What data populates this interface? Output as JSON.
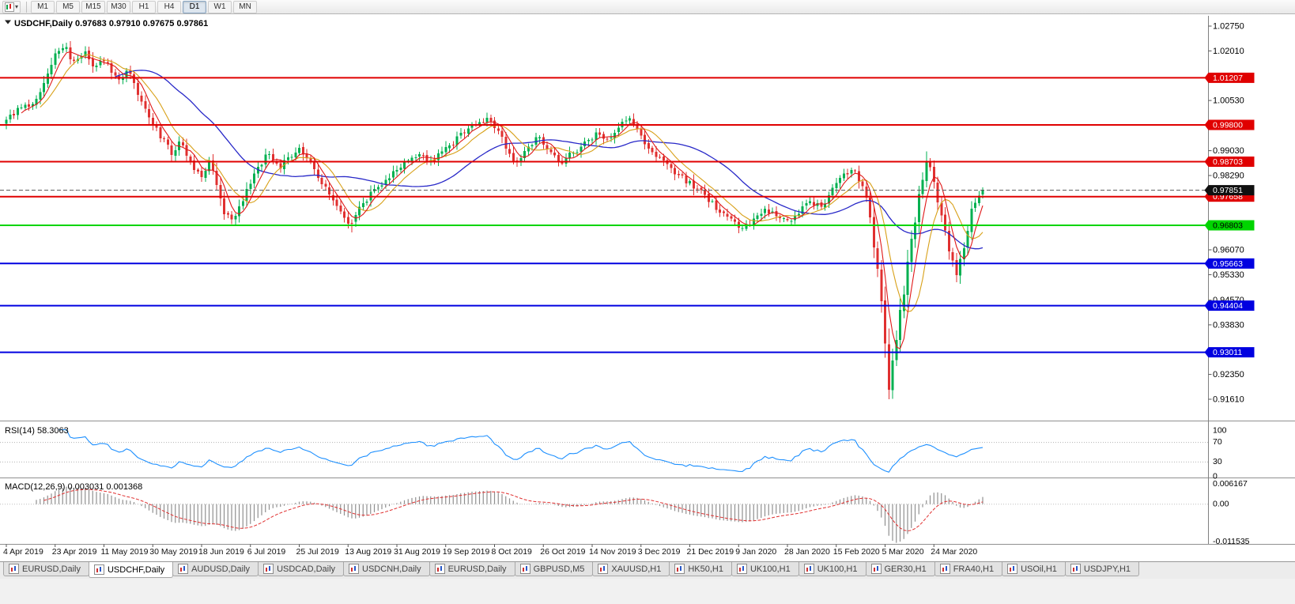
{
  "toolbar": {
    "chart_type_icon": "candlestick-chart",
    "timeframes": [
      {
        "label": "M1",
        "active": false
      },
      {
        "label": "M5",
        "active": false
      },
      {
        "label": "M15",
        "active": false
      },
      {
        "label": "M30",
        "active": false
      },
      {
        "label": "H1",
        "active": false
      },
      {
        "label": "H4",
        "active": false
      },
      {
        "label": "D1",
        "active": true
      },
      {
        "label": "W1",
        "active": false
      },
      {
        "label": "MN",
        "active": false
      }
    ]
  },
  "chart": {
    "title_line": "USDCHF,Daily  0.97683 0.97910 0.97675 0.97861",
    "symbol": "USDCHF",
    "period": "Daily",
    "rsi_title": "RSI(14) 58.3063",
    "macd_title": "MACD(12,26,9) 0.003031 0.001368"
  },
  "price_axis": {
    "ticks": [
      {
        "label": "1.02750",
        "value": 1.0275
      },
      {
        "label": "1.02010",
        "value": 1.0201
      },
      {
        "label": "1.00530",
        "value": 1.0053
      },
      {
        "label": "0.99030",
        "value": 0.9903
      },
      {
        "label": "0.98290",
        "value": 0.9829
      },
      {
        "label": "0.96070",
        "value": 0.9607
      },
      {
        "label": "0.95330",
        "value": 0.9533
      },
      {
        "label": "0.94570",
        "value": 0.9457
      },
      {
        "label": "0.93830",
        "value": 0.9383
      },
      {
        "label": "0.92350",
        "value": 0.9235
      },
      {
        "label": "0.91610",
        "value": 0.9161
      }
    ],
    "levels": [
      {
        "label": "1.01207",
        "value": 1.01207,
        "color": "#E00000",
        "text_color": "#FFFFFF",
        "width": 2,
        "kind": "resistance-line"
      },
      {
        "label": "0.99800",
        "value": 0.998,
        "color": "#E00000",
        "text_color": "#FFFFFF",
        "width": 2,
        "kind": "resistance-line"
      },
      {
        "label": "0.98703",
        "value": 0.98703,
        "color": "#E00000",
        "text_color": "#FFFFFF",
        "width": 2,
        "kind": "resistance-line"
      },
      {
        "label": "0.97658",
        "value": 0.97658,
        "color": "#E00000",
        "text_color": "#FFFFFF",
        "width": 2,
        "kind": "resistance-line"
      },
      {
        "label": "0.96803",
        "value": 0.96803,
        "color": "#00D400",
        "text_color": "#000000",
        "width": 2,
        "kind": "pivot-line"
      },
      {
        "label": "0.95663",
        "value": 0.95663,
        "color": "#0000E0",
        "text_color": "#FFFFFF",
        "width": 2,
        "kind": "support-line"
      },
      {
        "label": "0.94404",
        "value": 0.94404,
        "color": "#0000E0",
        "text_color": "#FFFFFF",
        "width": 2,
        "kind": "support-line"
      },
      {
        "label": "0.93011",
        "value": 0.93011,
        "color": "#0000E0",
        "text_color": "#FFFFFF",
        "width": 2,
        "kind": "support-line"
      }
    ],
    "bid": {
      "label": "0.97851",
      "value": 0.97851,
      "color": "#101010",
      "text_color": "#FFFFFF"
    }
  },
  "rsi_axis": {
    "labels": [
      {
        "label": "100",
        "value": 100
      },
      {
        "label": "70",
        "value": 70
      },
      {
        "label": "30",
        "value": 30
      },
      {
        "label": "0",
        "value": 0
      }
    ],
    "level_lines": [
      70,
      30
    ]
  },
  "macd_axis": {
    "labels": [
      {
        "label": "0.006167",
        "value": 0.006167
      },
      {
        "label": "0.00",
        "value": 0
      },
      {
        "label": "-0.011535",
        "value": -0.011535
      }
    ]
  },
  "dates": [
    {
      "label": "4 Apr 2019",
      "bar": 0
    },
    {
      "label": "23 Apr 2019",
      "bar": 13
    },
    {
      "label": "11 May 2019",
      "bar": 26
    },
    {
      "label": "30 May 2019",
      "bar": 39
    },
    {
      "label": "18 Jun 2019",
      "bar": 52
    },
    {
      "label": "6 Jul 2019",
      "bar": 65
    },
    {
      "label": "25 Jul 2019",
      "bar": 78
    },
    {
      "label": "13 Aug 2019",
      "bar": 91
    },
    {
      "label": "31 Aug 2019",
      "bar": 104
    },
    {
      "label": "19 Sep 2019",
      "bar": 117
    },
    {
      "label": "8 Oct 2019",
      "bar": 130
    },
    {
      "label": "26 Oct 2019",
      "bar": 143
    },
    {
      "label": "14 Nov 2019",
      "bar": 156
    },
    {
      "label": "3 Dec 2019",
      "bar": 169
    },
    {
      "label": "21 Dec 2019",
      "bar": 182
    },
    {
      "label": "9 Jan 2020",
      "bar": 195
    },
    {
      "label": "28 Jan 2020",
      "bar": 208
    },
    {
      "label": "15 Feb 2020",
      "bar": 221
    },
    {
      "label": "5 Mar 2020",
      "bar": 234
    },
    {
      "label": "24 Mar 2020",
      "bar": 247
    }
  ],
  "chart_data": {
    "type": "candlestick",
    "symbol": "USDCHF",
    "period": "Daily",
    "bars": 261,
    "ohlc_current": {
      "open": 0.97683,
      "high": 0.9791,
      "low": 0.97675,
      "close": 0.97861
    },
    "price_range_visible": [
      0.9161,
      1.0275
    ],
    "style": {
      "up_color": "#00B050",
      "down_color": "#E03030"
    },
    "close_keypoints": [
      [
        0,
        1.0
      ],
      [
        3,
        1.0022
      ],
      [
        6,
        1.004
      ],
      [
        9,
        1.0072
      ],
      [
        11,
        1.0118
      ],
      [
        13,
        1.0185
      ],
      [
        15,
        1.0208
      ],
      [
        16,
        1.0218
      ],
      [
        18,
        1.0165
      ],
      [
        21,
        1.0198
      ],
      [
        23,
        1.015
      ],
      [
        26,
        1.0172
      ],
      [
        28,
        1.0138
      ],
      [
        30,
        1.0118
      ],
      [
        32,
        1.0145
      ],
      [
        34,
        1.0098
      ],
      [
        36,
        1.0042
      ],
      [
        39,
        0.9986
      ],
      [
        42,
        0.993
      ],
      [
        44,
        0.9892
      ],
      [
        46,
        0.9928
      ],
      [
        49,
        0.9862
      ],
      [
        52,
        0.983
      ],
      [
        54,
        0.9866
      ],
      [
        56,
        0.9792
      ],
      [
        58,
        0.9726
      ],
      [
        60,
        0.9698
      ],
      [
        62,
        0.9742
      ],
      [
        65,
        0.9802
      ],
      [
        68,
        0.9868
      ],
      [
        70,
        0.9895
      ],
      [
        73,
        0.9856
      ],
      [
        76,
        0.9886
      ],
      [
        78,
        0.9908
      ],
      [
        81,
        0.9864
      ],
      [
        84,
        0.9806
      ],
      [
        87,
        0.9746
      ],
      [
        90,
        0.9706
      ],
      [
        92,
        0.9682
      ],
      [
        95,
        0.9744
      ],
      [
        98,
        0.9786
      ],
      [
        101,
        0.9816
      ],
      [
        104,
        0.9846
      ],
      [
        107,
        0.9876
      ],
      [
        110,
        0.9898
      ],
      [
        113,
        0.987
      ],
      [
        116,
        0.9898
      ],
      [
        119,
        0.9928
      ],
      [
        122,
        0.9958
      ],
      [
        125,
        0.9984
      ],
      [
        128,
        1.0
      ],
      [
        131,
        0.9952
      ],
      [
        134,
        0.9898
      ],
      [
        136,
        0.9868
      ],
      [
        139,
        0.9914
      ],
      [
        142,
        0.9944
      ],
      [
        145,
        0.9902
      ],
      [
        148,
        0.9868
      ],
      [
        151,
        0.9898
      ],
      [
        154,
        0.9928
      ],
      [
        157,
        0.9954
      ],
      [
        160,
        0.9934
      ],
      [
        163,
        0.9974
      ],
      [
        166,
        0.9996
      ],
      [
        169,
        0.9946
      ],
      [
        172,
        0.9898
      ],
      [
        175,
        0.9868
      ],
      [
        178,
        0.984
      ],
      [
        181,
        0.9812
      ],
      [
        184,
        0.979
      ],
      [
        187,
        0.9758
      ],
      [
        190,
        0.9722
      ],
      [
        193,
        0.9692
      ],
      [
        196,
        0.9668
      ],
      [
        199,
        0.97
      ],
      [
        202,
        0.973
      ],
      [
        205,
        0.9708
      ],
      [
        208,
        0.969
      ],
      [
        211,
        0.9722
      ],
      [
        214,
        0.9752
      ],
      [
        217,
        0.9734
      ],
      [
        219,
        0.9766
      ],
      [
        221,
        0.98
      ],
      [
        223,
        0.983
      ],
      [
        225,
        0.9848
      ],
      [
        227,
        0.982
      ],
      [
        228,
        0.9795
      ],
      [
        229,
        0.975
      ],
      [
        230,
        0.969
      ],
      [
        231,
        0.9618
      ],
      [
        232,
        0.954
      ],
      [
        233,
        0.9438
      ],
      [
        234,
        0.932
      ],
      [
        235,
        0.9195
      ],
      [
        236,
        0.9262
      ],
      [
        237,
        0.9338
      ],
      [
        238,
        0.942
      ],
      [
        239,
        0.9482
      ],
      [
        240,
        0.9558
      ],
      [
        241,
        0.963
      ],
      [
        242,
        0.97
      ],
      [
        243,
        0.9762
      ],
      [
        244,
        0.9822
      ],
      [
        245,
        0.9868
      ],
      [
        246,
        0.9838
      ],
      [
        247,
        0.98
      ],
      [
        248,
        0.9756
      ],
      [
        249,
        0.9706
      ],
      [
        250,
        0.9656
      ],
      [
        251,
        0.9606
      ],
      [
        252,
        0.9566
      ],
      [
        253,
        0.9536
      ],
      [
        254,
        0.9576
      ],
      [
        255,
        0.9626
      ],
      [
        256,
        0.9676
      ],
      [
        257,
        0.9716
      ],
      [
        258,
        0.9746
      ],
      [
        259,
        0.9772
      ],
      [
        260,
        0.9786
      ]
    ],
    "spikes": [
      {
        "bar": 16,
        "high": 1.0226
      },
      {
        "bar": 92,
        "low": 0.9659
      },
      {
        "bar": 196,
        "low": 0.9662
      },
      {
        "bar": 235,
        "low": 0.9161
      },
      {
        "bar": 245,
        "high": 0.9901
      }
    ],
    "indicators": {
      "ma_fast": {
        "period": 5,
        "color": "#E01818"
      },
      "ma_mid": {
        "period": 10,
        "color": "#D8A018"
      },
      "ma_slow": {
        "period": 30,
        "color": "#2828C8"
      },
      "rsi": {
        "period": 14,
        "color": "#1E90FF",
        "current": "58.3063",
        "levels": [
          30,
          70
        ]
      },
      "macd": {
        "fast": 12,
        "slow": 26,
        "signal": 9,
        "current_main": "0.003031",
        "current_signal": "0.001368",
        "histogram_color": "#8F8F8F",
        "signal_color": "#E03030"
      }
    }
  },
  "tabs": {
    "items": [
      {
        "label": "EURUSD,Daily",
        "active": false
      },
      {
        "label": "USDCHF,Daily",
        "active": true
      },
      {
        "label": "AUDUSD,Daily",
        "active": false
      },
      {
        "label": "USDCAD,Daily",
        "active": false
      },
      {
        "label": "USDCNH,Daily",
        "active": false
      },
      {
        "label": "EURUSD,Daily",
        "active": false
      },
      {
        "label": "GBPUSD,M5",
        "active": false
      },
      {
        "label": "XAUUSD,H1",
        "active": false
      },
      {
        "label": "HK50,H1",
        "active": false
      },
      {
        "label": "UK100,H1",
        "active": false
      },
      {
        "label": "UK100,H1",
        "active": false
      },
      {
        "label": "GER30,H1",
        "active": false
      },
      {
        "label": "FRA40,H1",
        "active": false
      },
      {
        "label": "USOil,H1",
        "active": false
      },
      {
        "label": "USDJPY,H1",
        "active": false
      }
    ]
  }
}
